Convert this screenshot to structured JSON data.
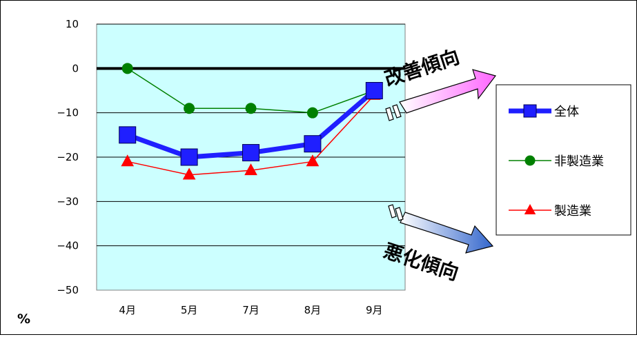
{
  "chart_data": {
    "type": "line",
    "categories": [
      "4月",
      "5月",
      "7月",
      "8月",
      "9月"
    ],
    "series": [
      {
        "name": "全体",
        "values": [
          -15,
          -20,
          -19,
          -17,
          -5
        ],
        "color": "#1f1fff",
        "marker": "square"
      },
      {
        "name": "非製造業",
        "values": [
          0,
          -9,
          -9,
          -10,
          -5
        ],
        "color": "#008000",
        "marker": "circle"
      },
      {
        "name": "製造業",
        "values": [
          -21,
          -24,
          -23,
          -21,
          -6
        ],
        "color": "#ff0000",
        "marker": "triangle"
      }
    ],
    "ylim": [
      -50,
      10
    ],
    "yticks": [
      10,
      0,
      -10,
      -20,
      -30,
      -40,
      -50
    ],
    "ytick_labels": [
      "10",
      "0",
      "−10",
      "−20",
      "−30",
      "−40",
      "−50"
    ],
    "ylabel": "%",
    "plot_background": "#ccffff",
    "grid": true,
    "legend_position": "right",
    "annotations": {
      "improve": "改善傾向",
      "worsen": "悪化傾向"
    }
  }
}
